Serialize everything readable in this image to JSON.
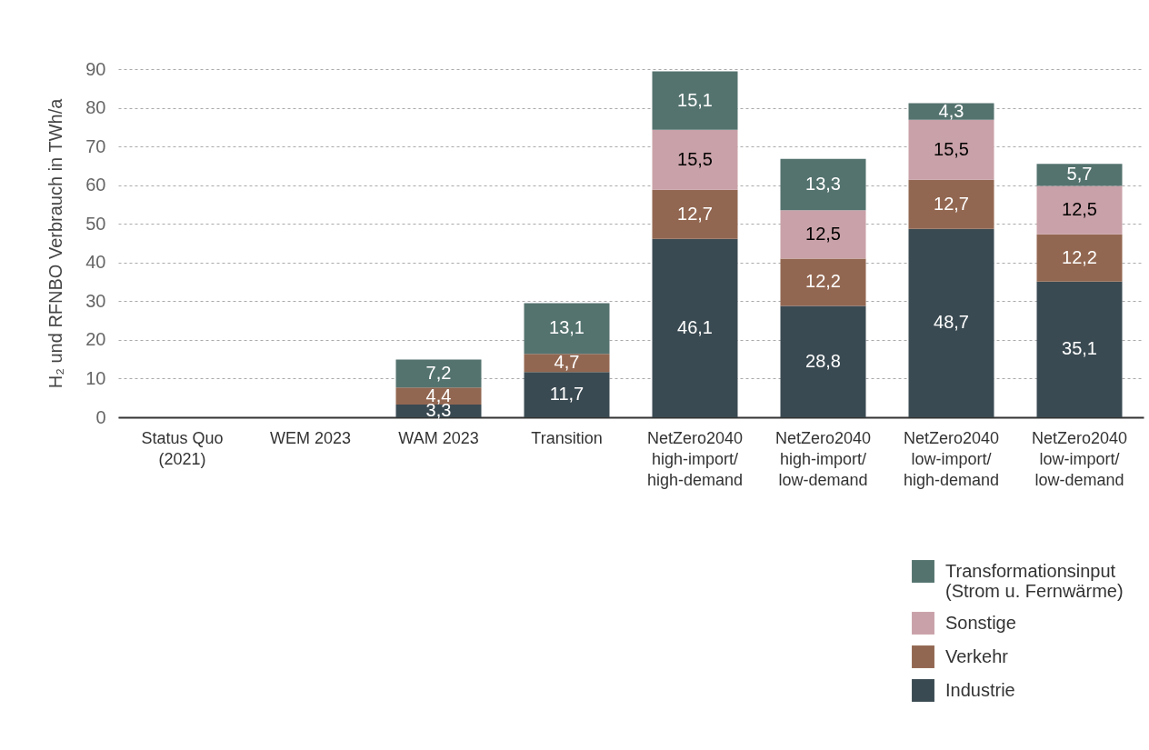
{
  "chart_data": {
    "type": "bar",
    "stacked": true,
    "ylabel": "H₂ und RFNBO Verbrauch in TWh/a",
    "categories": [
      "Status Quo\n(2021)",
      "WEM 2023",
      "WAM 2023",
      "Transition",
      "NetZero2040\nhigh-import/\nhigh-demand",
      "NetZero2040\nhigh-import/\nlow-demand",
      "NetZero2040\nlow-import/\nhigh-demand",
      "NetZero2040\nlow-import/\nlow-demand"
    ],
    "series": [
      {
        "name": "Industrie",
        "color": "#3a4a52",
        "values": [
          null,
          null,
          3.3,
          11.7,
          46.1,
          28.8,
          48.7,
          35.1
        ],
        "value_labels": [
          null,
          null,
          "3,3",
          "11,7",
          "46,1",
          "28,8",
          "48,7",
          "35,1"
        ]
      },
      {
        "name": "Verkehr",
        "color": "#926751",
        "values": [
          null,
          null,
          4.4,
          4.7,
          12.7,
          12.2,
          12.7,
          12.2
        ],
        "value_labels": [
          null,
          null,
          "4,4",
          "4,7",
          "12,7",
          "12,2",
          "12,7",
          "12,2"
        ]
      },
      {
        "name": "Sonstige",
        "color": "#c9a1a8",
        "values": [
          null,
          null,
          null,
          null,
          15.5,
          12.5,
          15.5,
          12.5
        ],
        "value_labels": [
          null,
          null,
          null,
          null,
          "15,5",
          "12,5",
          "15,5",
          "12,5"
        ]
      },
      {
        "name": "Transformationsinput\n(Strom u. Fernwärme)",
        "color": "#54736f",
        "values": [
          null,
          null,
          7.2,
          13.1,
          15.1,
          13.3,
          4.3,
          5.7
        ],
        "value_labels": [
          null,
          null,
          "7,2",
          "13,1",
          "15,1",
          "13,3",
          "4,3",
          "5,7"
        ]
      }
    ],
    "ylim": [
      0,
      90
    ],
    "yticks": [
      0,
      10,
      20,
      30,
      40,
      50,
      60,
      70,
      80,
      90
    ],
    "grid": "y",
    "legend": "bottom right"
  }
}
